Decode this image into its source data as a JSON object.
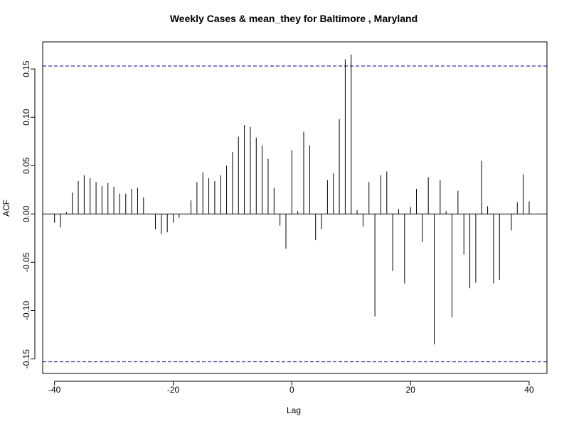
{
  "chart_data": {
    "type": "bar",
    "subtype": "acf-lollipop",
    "title": "Weekly Cases & mean_they for Baltimore , Maryland",
    "xlabel": "Lag",
    "ylabel": "ACF",
    "xlim": [
      -42,
      43
    ],
    "ylim": [
      -0.165,
      0.178
    ],
    "xticks": [
      -40,
      -20,
      0,
      20,
      40
    ],
    "xtick_labels": [
      "-40",
      "-20",
      "0",
      "20",
      "40"
    ],
    "yticks": [
      -0.15,
      -0.1,
      -0.05,
      0.0,
      0.05,
      0.1,
      0.15
    ],
    "ytick_labels": [
      "-0.15",
      "-0.10",
      "-0.05",
      "0.00",
      "0.05",
      "0.10",
      "0.15"
    ],
    "confidence_bound": 0.153,
    "x": [
      -40,
      -39,
      -38,
      -37,
      -36,
      -35,
      -34,
      -33,
      -32,
      -31,
      -30,
      -29,
      -28,
      -27,
      -26,
      -25,
      -24,
      -23,
      -22,
      -21,
      -20,
      -19,
      -18,
      -17,
      -16,
      -15,
      -14,
      -13,
      -12,
      -11,
      -10,
      -9,
      -8,
      -7,
      -6,
      -5,
      -4,
      -3,
      -2,
      -1,
      0,
      1,
      2,
      3,
      4,
      5,
      6,
      7,
      8,
      9,
      10,
      11,
      12,
      13,
      14,
      15,
      16,
      17,
      18,
      19,
      20,
      21,
      22,
      23,
      24,
      25,
      26,
      27,
      28,
      29,
      30,
      31,
      32,
      33,
      34,
      35,
      36,
      37,
      38,
      39,
      40
    ],
    "values": [
      -0.009,
      -0.014,
      0.002,
      0.022,
      0.034,
      0.04,
      0.037,
      0.033,
      0.029,
      0.032,
      0.028,
      0.021,
      0.021,
      0.026,
      0.027,
      0.017,
      0.0,
      -0.016,
      -0.021,
      -0.019,
      -0.009,
      -0.004,
      0.0,
      0.014,
      0.033,
      0.043,
      0.037,
      0.034,
      0.04,
      0.05,
      0.064,
      0.08,
      0.092,
      0.09,
      0.079,
      0.071,
      0.057,
      0.027,
      -0.012,
      -0.036,
      0.066,
      0.003,
      0.085,
      0.071,
      -0.027,
      -0.016,
      0.035,
      0.042,
      0.098,
      0.16,
      0.165,
      0.004,
      -0.013,
      0.033,
      -0.106,
      0.04,
      0.044,
      -0.059,
      0.005,
      -0.072,
      0.007,
      0.026,
      -0.029,
      0.038,
      -0.135,
      0.035,
      0.003,
      -0.107,
      0.024,
      -0.042,
      -0.077,
      -0.071,
      0.055,
      0.008,
      -0.072,
      -0.068,
      0.0,
      -0.017,
      0.012,
      0.041,
      0.013
    ],
    "colors": {
      "stem": "#000000",
      "bound": "#00008B",
      "axis": "#000000"
    },
    "grid": false,
    "legend": "none"
  }
}
